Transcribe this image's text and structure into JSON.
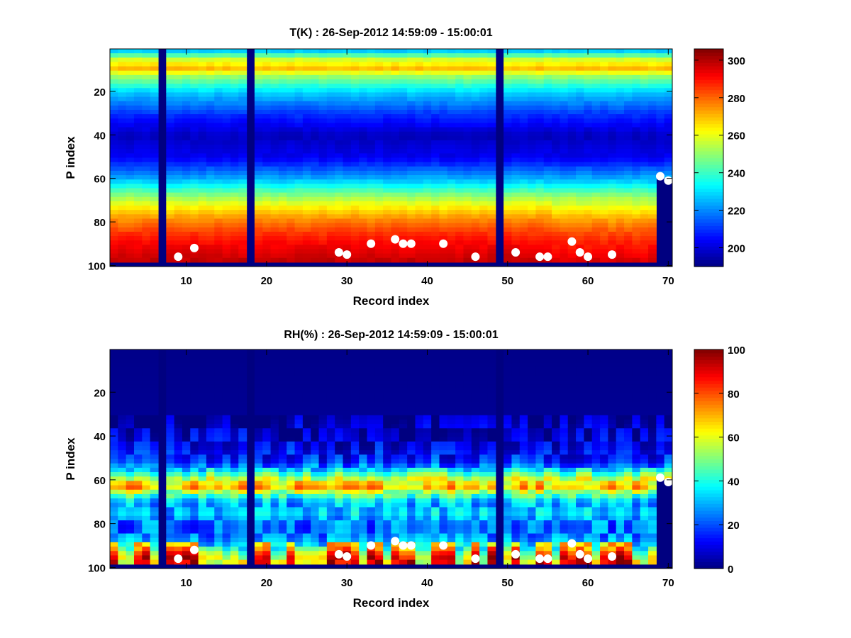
{
  "chart_data": [
    {
      "type": "heatmap",
      "title": "T(K) : 26-Sep-2012 14:59:09 - 15:00:01",
      "xlabel": "Record index",
      "ylabel": "P index",
      "xlim": [
        0.5,
        70.5
      ],
      "ylim": [
        0.5,
        100.5
      ],
      "y_reversed": true,
      "x_ticks": [
        "10",
        "20",
        "30",
        "40",
        "50",
        "60",
        "70"
      ],
      "y_ticks": [
        "20",
        "40",
        "60",
        "80",
        "100"
      ],
      "colormap": "jet",
      "clim": [
        190,
        306
      ],
      "colorbar_ticks": [
        "200",
        "220",
        "240",
        "260",
        "280",
        "300"
      ],
      "missing_records": [
        7,
        18,
        49
      ],
      "surface_points": [
        {
          "x": 9,
          "y": 96
        },
        {
          "x": 11,
          "y": 92
        },
        {
          "x": 29,
          "y": 94
        },
        {
          "x": 30,
          "y": 95
        },
        {
          "x": 33,
          "y": 90
        },
        {
          "x": 36,
          "y": 88
        },
        {
          "x": 37,
          "y": 90
        },
        {
          "x": 38,
          "y": 90
        },
        {
          "x": 42,
          "y": 90
        },
        {
          "x": 46,
          "y": 96
        },
        {
          "x": 51,
          "y": 94
        },
        {
          "x": 54,
          "y": 96
        },
        {
          "x": 55,
          "y": 96
        },
        {
          "x": 58,
          "y": 89
        },
        {
          "x": 59,
          "y": 94
        },
        {
          "x": 60,
          "y": 96
        },
        {
          "x": 63,
          "y": 95
        },
        {
          "x": 69,
          "y": 59
        },
        {
          "x": 70,
          "y": 61
        }
      ],
      "profile": {
        "p": [
          1,
          5,
          9,
          13,
          20,
          30,
          40,
          50,
          60,
          66,
          72,
          78,
          84,
          90,
          96,
          98
        ],
        "v": [
          228,
          258,
          270,
          250,
          228,
          210,
          197,
          203,
          225,
          245,
          262,
          275,
          285,
          292,
          297,
          299
        ]
      }
    },
    {
      "type": "heatmap",
      "title": "RH(%) : 26-Sep-2012 14:59:09 - 15:00:01",
      "xlabel": "Record index",
      "ylabel": "P index",
      "xlim": [
        0.5,
        70.5
      ],
      "ylim": [
        0.5,
        100.5
      ],
      "y_reversed": true,
      "x_ticks": [
        "10",
        "20",
        "30",
        "40",
        "50",
        "60",
        "70"
      ],
      "y_ticks": [
        "20",
        "40",
        "60",
        "80",
        "100"
      ],
      "colormap": "jet",
      "clim": [
        0,
        100
      ],
      "colorbar_ticks": [
        "0",
        "20",
        "40",
        "60",
        "80",
        "100"
      ],
      "missing_records": [
        7,
        18,
        49
      ],
      "surface_points": [
        {
          "x": 9,
          "y": 96
        },
        {
          "x": 11,
          "y": 92
        },
        {
          "x": 29,
          "y": 94
        },
        {
          "x": 30,
          "y": 95
        },
        {
          "x": 33,
          "y": 90
        },
        {
          "x": 36,
          "y": 88
        },
        {
          "x": 37,
          "y": 90
        },
        {
          "x": 38,
          "y": 90
        },
        {
          "x": 42,
          "y": 90
        },
        {
          "x": 46,
          "y": 96
        },
        {
          "x": 51,
          "y": 94
        },
        {
          "x": 54,
          "y": 96
        },
        {
          "x": 55,
          "y": 96
        },
        {
          "x": 58,
          "y": 89
        },
        {
          "x": 59,
          "y": 94
        },
        {
          "x": 60,
          "y": 96
        },
        {
          "x": 63,
          "y": 95
        },
        {
          "x": 69,
          "y": 59
        },
        {
          "x": 70,
          "y": 61
        }
      ],
      "profile": {
        "p": [
          1,
          30,
          36,
          45,
          52,
          56,
          60,
          63,
          66,
          70,
          75,
          80,
          86,
          90,
          94,
          98
        ],
        "v": [
          1,
          2,
          6,
          10,
          18,
          40,
          62,
          70,
          48,
          28,
          32,
          22,
          25,
          35,
          55,
          60
        ]
      }
    }
  ]
}
